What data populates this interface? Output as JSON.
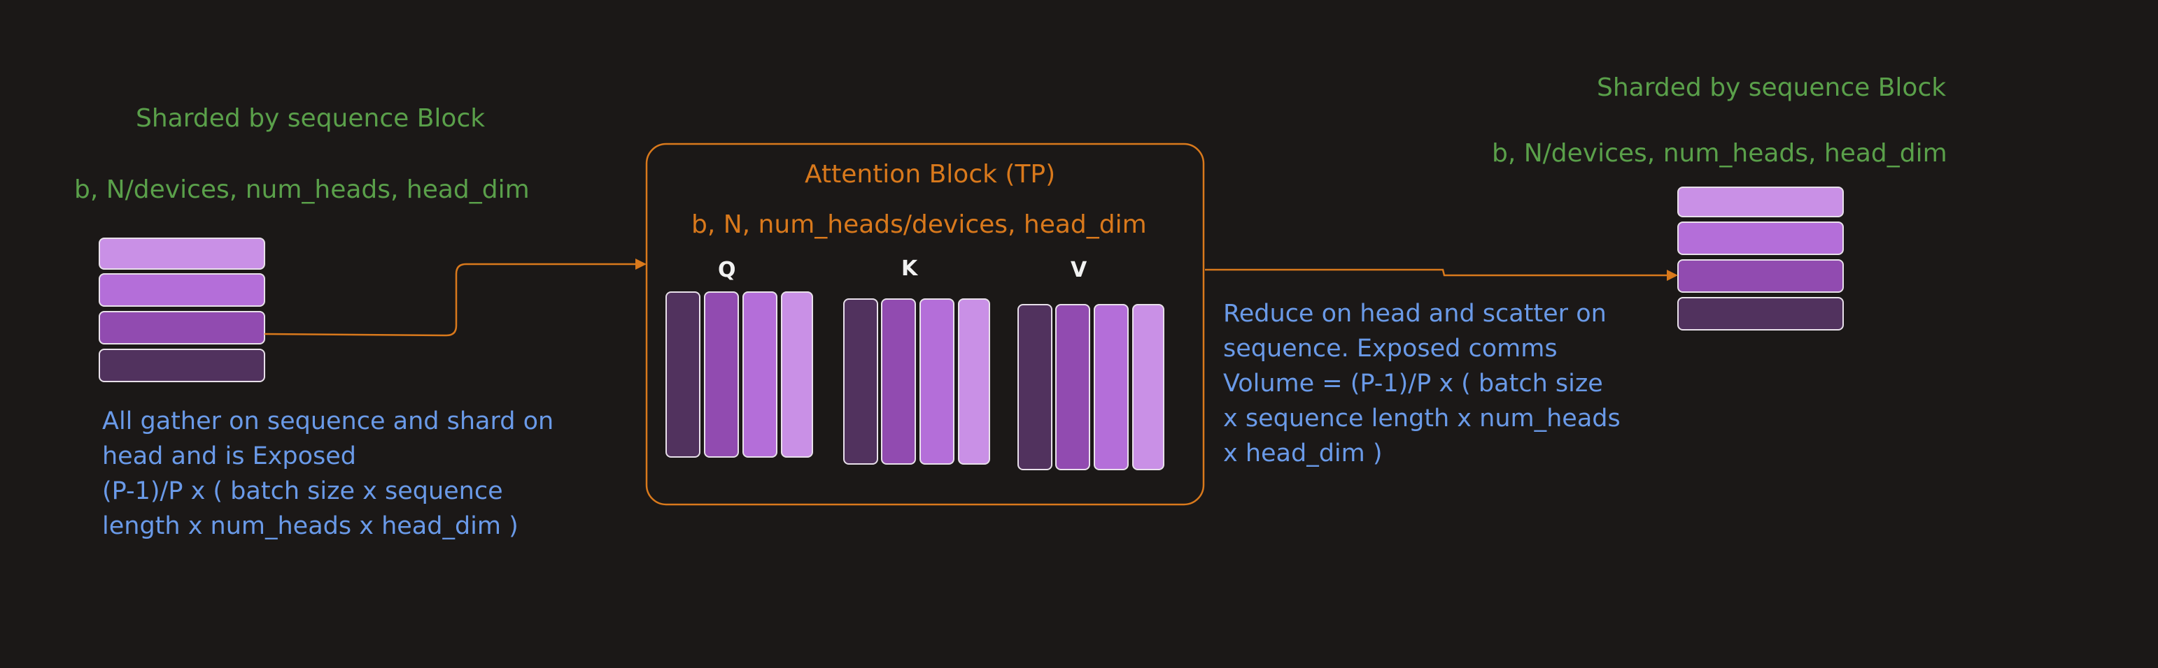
{
  "left_block": {
    "title": "Sharded by sequence Block",
    "shape": "b, N/devices, num_heads, head_dim",
    "bar_colors": [
      "#c990e6",
      "#b46ed9",
      "#914bb0",
      "#51325e"
    ],
    "description_lines": [
      "All gather on sequence and shard on",
      "head and is Exposed",
      "(P-1)/P x ( batch size x sequence",
      "length x num_heads x head_dim )"
    ]
  },
  "attention_block": {
    "title": "Attention Block (TP)",
    "shape": "b, N, num_heads/devices, head_dim",
    "groups": [
      {
        "label": "Q",
        "bar_colors": [
          "#51325e",
          "#914bb0",
          "#b46ed9",
          "#c990e6"
        ]
      },
      {
        "label": "K",
        "bar_colors": [
          "#51325e",
          "#914bb0",
          "#b46ed9",
          "#c990e6"
        ]
      },
      {
        "label": "V",
        "bar_colors": [
          "#51325e",
          "#914bb0",
          "#b46ed9",
          "#c990e6"
        ]
      }
    ]
  },
  "right_block": {
    "title": "Sharded by sequence Block",
    "shape": "b, N/devices, num_heads, head_dim",
    "bar_colors": [
      "#c990e6",
      "#b46ed9",
      "#914bb0",
      "#51325e"
    ],
    "description_lines": [
      "Reduce on head and scatter on",
      "sequence. Exposed comms",
      "Volume = (P-1)/P x ( batch size",
      "x sequence length x num_heads",
      "x head_dim )"
    ]
  },
  "colors": {
    "background": "#1b1817",
    "title_green": "#5aa04a",
    "accent_orange": "#d9791c",
    "note_blue": "#6a9ae8",
    "bar_outline": "#e8e0ea"
  }
}
